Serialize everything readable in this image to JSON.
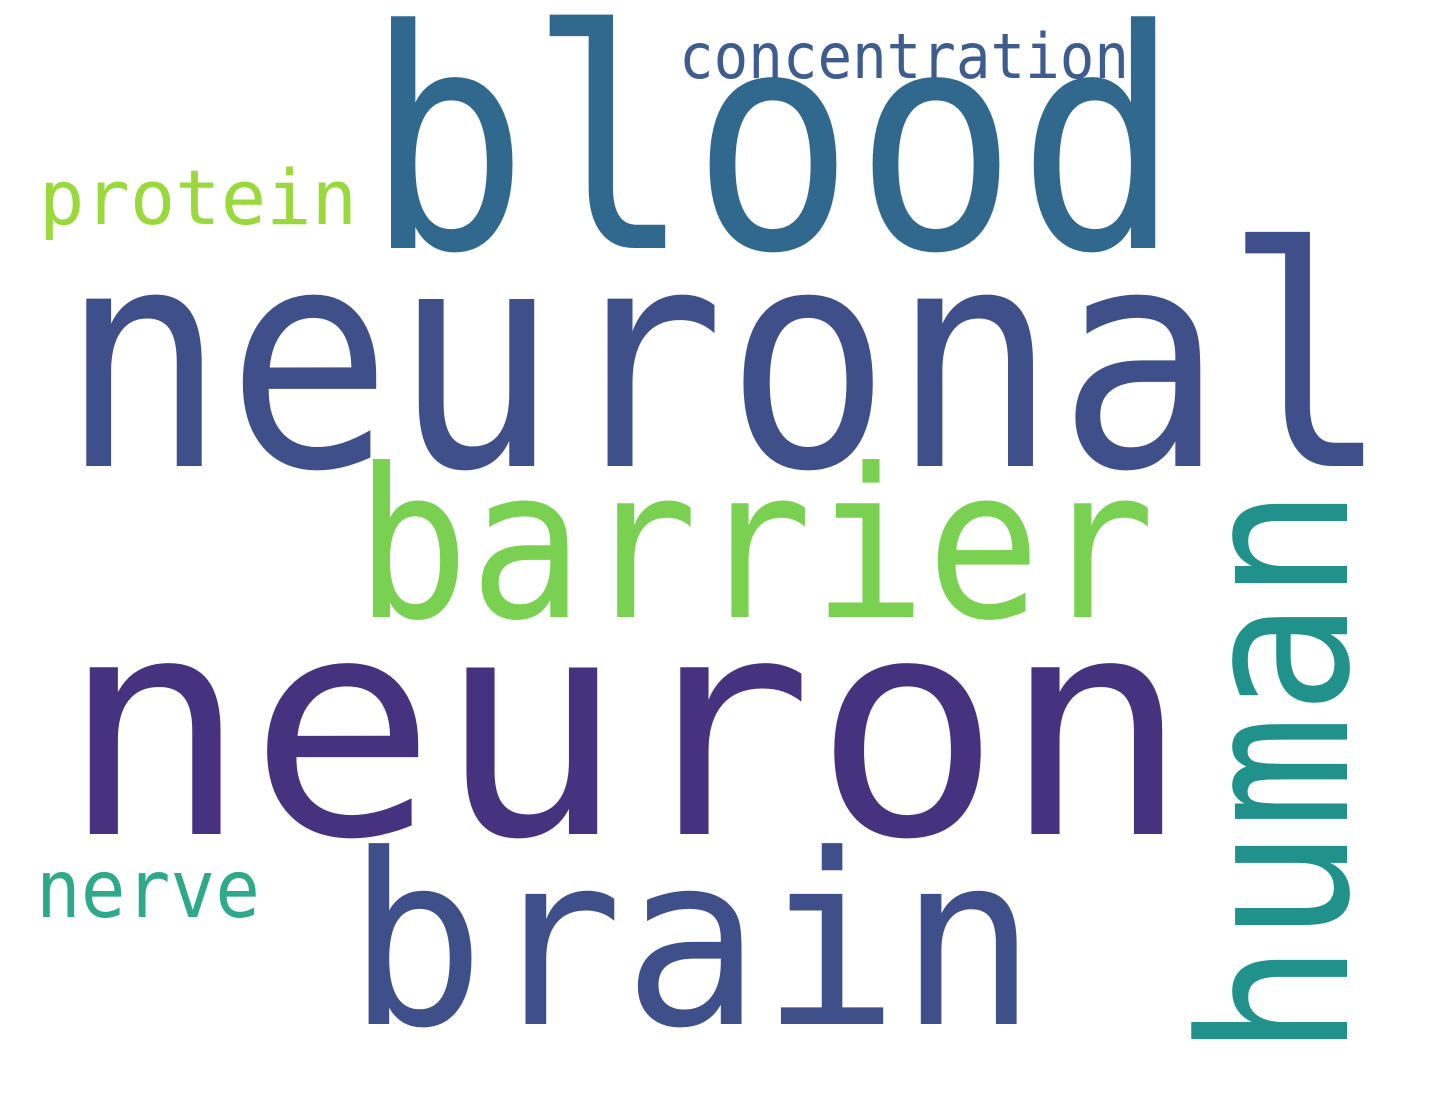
{
  "words": {
    "blood": {
      "text": "blood",
      "color": "#31688e"
    },
    "concentration": {
      "text": "concentration",
      "color": "#3e5c8d"
    },
    "protein": {
      "text": "protein",
      "color": "#9ad93c"
    },
    "neuronal": {
      "text": "neuronal",
      "color": "#3f4f8a"
    },
    "barrier": {
      "text": "barrier",
      "color": "#7ad151"
    },
    "human": {
      "text": "human",
      "color": "#21918c"
    },
    "neuron": {
      "text": "neuron",
      "color": "#46327e"
    },
    "nerve": {
      "text": "nerve",
      "color": "#2ea98a"
    },
    "brain": {
      "text": "brain",
      "color": "#3f4f8a"
    }
  }
}
